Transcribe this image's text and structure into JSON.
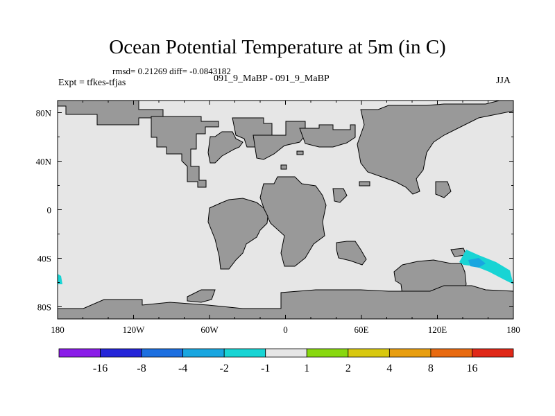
{
  "title": "Ocean Potential Temperature at 5m (in C)",
  "stats": "rmsd= 0.21269 diff= -0.0843182",
  "runs": "091_9_MaBP - 091_9_MaBP",
  "experiment": "Expt = tfkes-tfjas",
  "season": "JJA",
  "chart_data": {
    "type": "heatmap",
    "x_ticks": [
      "180",
      "120W",
      "60W",
      "0",
      "60E",
      "120E",
      "180"
    ],
    "y_ticks": [
      "80N",
      "40N",
      "0",
      "40S",
      "80S"
    ],
    "xlim": [
      -180,
      180
    ],
    "ylim": [
      -90,
      90
    ],
    "colorbar": {
      "labels": [
        "-16",
        "-8",
        "-4",
        "-2",
        "-1",
        "1",
        "2",
        "4",
        "8",
        "16"
      ],
      "colors": [
        "#8a1ce8",
        "#2424d8",
        "#1c6fe0",
        "#19a6e0",
        "#18d4d4",
        "#e6e6e6",
        "#88d80f",
        "#d8c80f",
        "#e89e10",
        "#e86a10",
        "#e02818"
      ]
    },
    "colors": {
      "land": "#999999",
      "ocean": "#e6e6e6"
    }
  }
}
